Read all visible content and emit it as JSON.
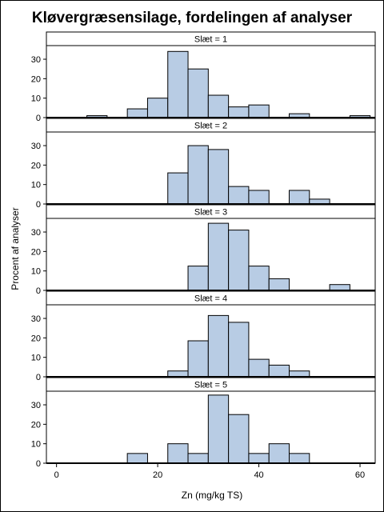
{
  "chart_data": {
    "type": "bar",
    "title": "Kløvergræsensilage, fordelingen af analyser",
    "xlabel": "Zn (mg/kg TS)",
    "ylabel": "Procent af analyser",
    "xlim": [
      -2,
      63
    ],
    "ylim": [
      0,
      37
    ],
    "xticks": [
      0,
      20,
      40,
      60
    ],
    "yticks": [
      0,
      10,
      20,
      30
    ],
    "bin_width": 4,
    "grid": false,
    "panels": [
      {
        "label": "Slæt = 1",
        "bins": [
          {
            "x0": 6,
            "x1": 10,
            "value": 1
          },
          {
            "x0": 14,
            "x1": 18,
            "value": 4.5
          },
          {
            "x0": 18,
            "x1": 22,
            "value": 10
          },
          {
            "x0": 22,
            "x1": 26,
            "value": 34
          },
          {
            "x0": 26,
            "x1": 30,
            "value": 25
          },
          {
            "x0": 30,
            "x1": 34,
            "value": 11.5
          },
          {
            "x0": 34,
            "x1": 38,
            "value": 5.5
          },
          {
            "x0": 38,
            "x1": 42,
            "value": 6.5
          },
          {
            "x0": 46,
            "x1": 50,
            "value": 2
          },
          {
            "x0": 58,
            "x1": 62,
            "value": 1
          }
        ]
      },
      {
        "label": "Slæt = 2",
        "bins": [
          {
            "x0": 22,
            "x1": 26,
            "value": 16
          },
          {
            "x0": 26,
            "x1": 30,
            "value": 30
          },
          {
            "x0": 30,
            "x1": 34,
            "value": 28
          },
          {
            "x0": 34,
            "x1": 38,
            "value": 9
          },
          {
            "x0": 38,
            "x1": 42,
            "value": 7
          },
          {
            "x0": 46,
            "x1": 50,
            "value": 7
          },
          {
            "x0": 50,
            "x1": 54,
            "value": 2.5
          }
        ]
      },
      {
        "label": "Slæt = 3",
        "bins": [
          {
            "x0": 26,
            "x1": 30,
            "value": 12.5
          },
          {
            "x0": 30,
            "x1": 34,
            "value": 34.5
          },
          {
            "x0": 34,
            "x1": 38,
            "value": 31
          },
          {
            "x0": 38,
            "x1": 42,
            "value": 12.5
          },
          {
            "x0": 42,
            "x1": 46,
            "value": 6
          },
          {
            "x0": 54,
            "x1": 58,
            "value": 3
          }
        ]
      },
      {
        "label": "Slæt = 4",
        "bins": [
          {
            "x0": 22,
            "x1": 26,
            "value": 3
          },
          {
            "x0": 26,
            "x1": 30,
            "value": 18.5
          },
          {
            "x0": 30,
            "x1": 34,
            "value": 31.5
          },
          {
            "x0": 34,
            "x1": 38,
            "value": 28
          },
          {
            "x0": 38,
            "x1": 42,
            "value": 9
          },
          {
            "x0": 42,
            "x1": 46,
            "value": 6
          },
          {
            "x0": 46,
            "x1": 50,
            "value": 3
          }
        ]
      },
      {
        "label": "Slæt = 5",
        "bins": [
          {
            "x0": 14,
            "x1": 18,
            "value": 5
          },
          {
            "x0": 22,
            "x1": 26,
            "value": 10
          },
          {
            "x0": 26,
            "x1": 30,
            "value": 5
          },
          {
            "x0": 30,
            "x1": 34,
            "value": 35
          },
          {
            "x0": 34,
            "x1": 38,
            "value": 25
          },
          {
            "x0": 38,
            "x1": 42,
            "value": 5
          },
          {
            "x0": 42,
            "x1": 46,
            "value": 10
          },
          {
            "x0": 46,
            "x1": 50,
            "value": 5
          }
        ]
      }
    ]
  },
  "colors": {
    "bar_fill": "#b8cce4",
    "bar_stroke": "#000000",
    "background": "#ffffff"
  }
}
